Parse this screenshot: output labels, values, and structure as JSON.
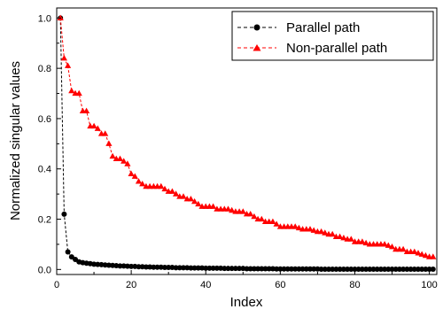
{
  "chart_data": {
    "type": "line",
    "xlabel": "Index",
    "ylabel": "Normalized singular values",
    "xlim": [
      0,
      102
    ],
    "ylim": [
      -0.02,
      1.04
    ],
    "x_ticks": [
      0,
      20,
      40,
      60,
      80,
      100
    ],
    "y_ticks": [
      0.0,
      0.2,
      0.4,
      0.6,
      0.8,
      1.0
    ],
    "x_tick_labels": [
      "0",
      "20",
      "40",
      "60",
      "80",
      "100"
    ],
    "y_tick_labels": [
      "0.0",
      "0.2",
      "0.4",
      "0.6",
      "0.8",
      "1.0"
    ],
    "grid": false,
    "legend_position": "top-right",
    "series": [
      {
        "name": "Parallel path",
        "color": "#000000",
        "marker": "circle",
        "line_style": "dashed",
        "x": [
          1,
          2,
          3,
          4,
          5,
          6,
          7,
          8,
          9,
          10,
          11,
          12,
          13,
          14,
          15,
          16,
          17,
          18,
          19,
          20,
          21,
          22,
          23,
          24,
          25,
          26,
          27,
          28,
          29,
          30,
          31,
          32,
          33,
          34,
          35,
          36,
          37,
          38,
          39,
          40,
          41,
          42,
          43,
          44,
          45,
          46,
          47,
          48,
          49,
          50,
          51,
          52,
          53,
          54,
          55,
          56,
          57,
          58,
          59,
          60,
          61,
          62,
          63,
          64,
          65,
          66,
          67,
          68,
          69,
          70,
          71,
          72,
          73,
          74,
          75,
          76,
          77,
          78,
          79,
          80,
          81,
          82,
          83,
          84,
          85,
          86,
          87,
          88,
          89,
          90,
          91,
          92,
          93,
          94,
          95,
          96,
          97,
          98,
          99,
          100,
          101
        ],
        "values": [
          1.0,
          0.22,
          0.07,
          0.05,
          0.04,
          0.03,
          0.027,
          0.025,
          0.023,
          0.021,
          0.02,
          0.019,
          0.018,
          0.017,
          0.016,
          0.015,
          0.014,
          0.014,
          0.013,
          0.012,
          0.012,
          0.011,
          0.011,
          0.01,
          0.01,
          0.009,
          0.009,
          0.009,
          0.008,
          0.008,
          0.008,
          0.007,
          0.007,
          0.007,
          0.007,
          0.006,
          0.006,
          0.006,
          0.006,
          0.005,
          0.005,
          0.005,
          0.005,
          0.005,
          0.004,
          0.004,
          0.004,
          0.004,
          0.004,
          0.004,
          0.003,
          0.003,
          0.003,
          0.003,
          0.003,
          0.003,
          0.003,
          0.003,
          0.002,
          0.002,
          0.002,
          0.002,
          0.002,
          0.002,
          0.002,
          0.002,
          0.002,
          0.002,
          0.002,
          0.002,
          0.001,
          0.001,
          0.001,
          0.001,
          0.001,
          0.001,
          0.001,
          0.001,
          0.001,
          0.001,
          0.001,
          0.001,
          0.001,
          0.001,
          0.001,
          0.001,
          0.001,
          0.001,
          0.001,
          0.001,
          0.001,
          0.001,
          0.001,
          0.001,
          0.001,
          0.001,
          0.001,
          0.001,
          0.001,
          0.001,
          0.001
        ]
      },
      {
        "name": "Non-parallel path",
        "color": "#ff0000",
        "marker": "triangle",
        "line_style": "dashed",
        "x": [
          1,
          2,
          3,
          4,
          5,
          6,
          7,
          8,
          9,
          10,
          11,
          12,
          13,
          14,
          15,
          16,
          17,
          18,
          19,
          20,
          21,
          22,
          23,
          24,
          25,
          26,
          27,
          28,
          29,
          30,
          31,
          32,
          33,
          34,
          35,
          36,
          37,
          38,
          39,
          40,
          41,
          42,
          43,
          44,
          45,
          46,
          47,
          48,
          49,
          50,
          51,
          52,
          53,
          54,
          55,
          56,
          57,
          58,
          59,
          60,
          61,
          62,
          63,
          64,
          65,
          66,
          67,
          68,
          69,
          70,
          71,
          72,
          73,
          74,
          75,
          76,
          77,
          78,
          79,
          80,
          81,
          82,
          83,
          84,
          85,
          86,
          87,
          88,
          89,
          90,
          91,
          92,
          93,
          94,
          95,
          96,
          97,
          98,
          99,
          100,
          101
        ],
        "values": [
          1.0,
          0.84,
          0.81,
          0.71,
          0.7,
          0.7,
          0.63,
          0.63,
          0.57,
          0.57,
          0.56,
          0.54,
          0.54,
          0.5,
          0.45,
          0.44,
          0.44,
          0.43,
          0.42,
          0.38,
          0.37,
          0.35,
          0.34,
          0.33,
          0.33,
          0.33,
          0.33,
          0.33,
          0.32,
          0.31,
          0.31,
          0.3,
          0.29,
          0.29,
          0.28,
          0.28,
          0.27,
          0.26,
          0.25,
          0.25,
          0.25,
          0.25,
          0.24,
          0.24,
          0.24,
          0.24,
          0.235,
          0.23,
          0.23,
          0.23,
          0.22,
          0.22,
          0.21,
          0.2,
          0.2,
          0.19,
          0.19,
          0.19,
          0.18,
          0.17,
          0.17,
          0.17,
          0.17,
          0.17,
          0.165,
          0.16,
          0.16,
          0.16,
          0.155,
          0.15,
          0.15,
          0.145,
          0.14,
          0.14,
          0.13,
          0.13,
          0.125,
          0.12,
          0.12,
          0.11,
          0.11,
          0.11,
          0.105,
          0.1,
          0.1,
          0.1,
          0.1,
          0.1,
          0.095,
          0.09,
          0.08,
          0.08,
          0.08,
          0.07,
          0.07,
          0.07,
          0.065,
          0.06,
          0.055,
          0.05,
          0.05
        ]
      }
    ]
  }
}
